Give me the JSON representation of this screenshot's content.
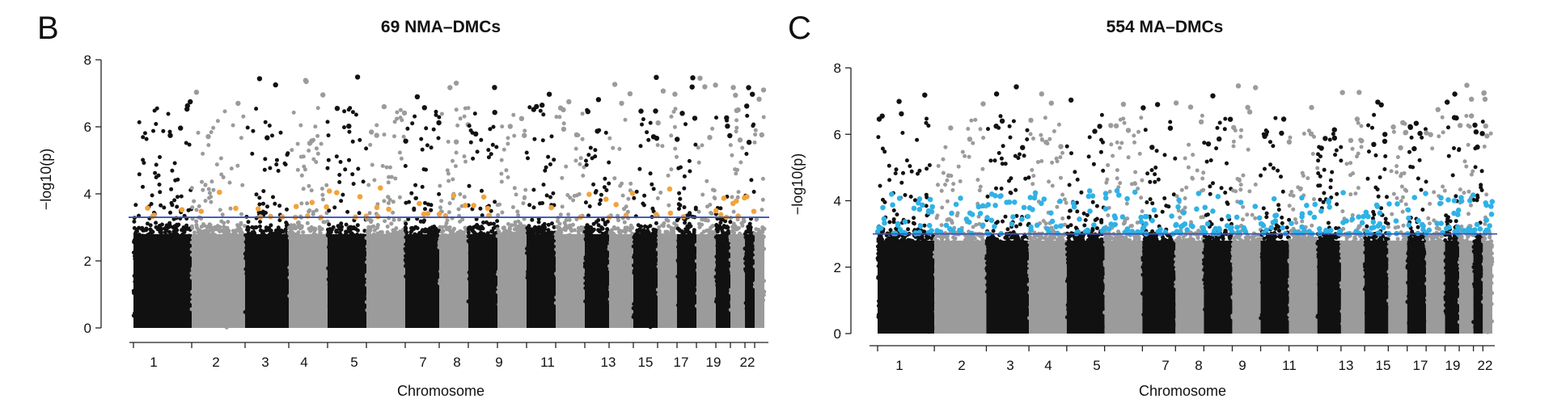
{
  "chart_data": [
    {
      "panel": "B",
      "type": "scatter",
      "title": "69 NMA–DMCs",
      "xlabel": "Chromosome",
      "ylabel": "−log10(p)",
      "ylim": [
        0,
        8
      ],
      "yticks": [
        0,
        2,
        4,
        6,
        8
      ],
      "x_tick_labels": [
        "1",
        "2",
        "3",
        "4",
        "5",
        "7",
        "8",
        "9",
        "11",
        "13",
        "15",
        "17",
        "19",
        "22"
      ],
      "significance_threshold": 3.3,
      "threshold_color": "#3a53b8",
      "highlight_count": 69,
      "highlight_color": "#f2a33a",
      "chromosome_colors": [
        "#111111",
        "#9b9b9b"
      ]
    },
    {
      "panel": "C",
      "type": "scatter",
      "title": "554 MA–DMCs",
      "xlabel": "Chromosome",
      "ylabel": "−log10(p)",
      "ylim": [
        0,
        8
      ],
      "yticks": [
        0,
        2,
        4,
        6,
        8
      ],
      "x_tick_labels": [
        "1",
        "2",
        "3",
        "4",
        "5",
        "7",
        "8",
        "9",
        "11",
        "13",
        "15",
        "17",
        "19",
        "22"
      ],
      "significance_threshold": 3.0,
      "threshold_color": "#3a53b8",
      "highlight_count": 554,
      "highlight_color": "#2fb2e6",
      "chromosome_colors": [
        "#111111",
        "#9b9b9b"
      ]
    }
  ]
}
